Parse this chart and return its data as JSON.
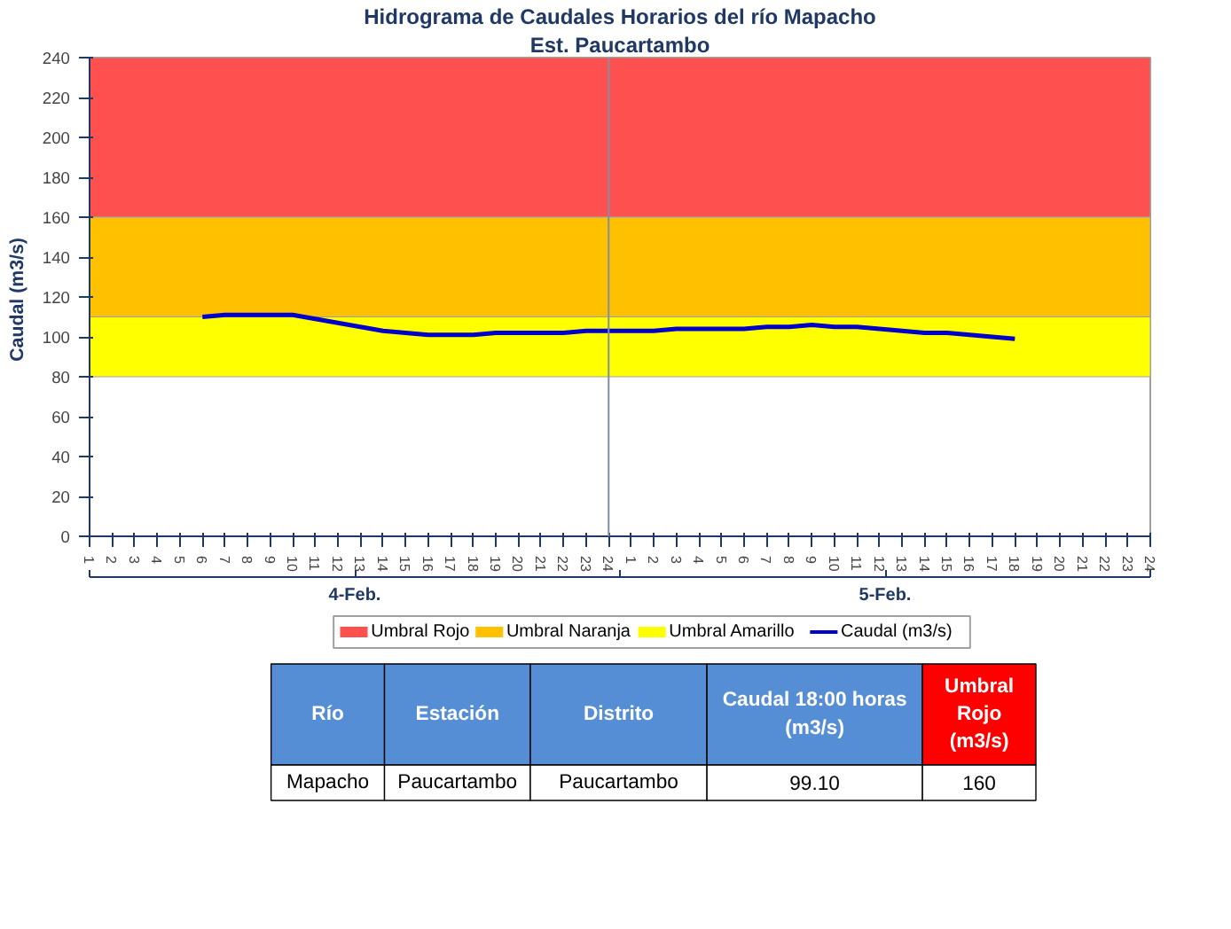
{
  "chart_data": {
    "type": "line",
    "title": "Hidrograma de Caudales Horarios del río Mapacho",
    "subtitle": "Est. Paucartambo",
    "ylabel": "Caudal  (m3/s)",
    "categories": [
      "1",
      "2",
      "3",
      "4",
      "5",
      "6",
      "7",
      "8",
      "9",
      "10",
      "11",
      "12",
      "13",
      "14",
      "15",
      "16",
      "17",
      "18",
      "19",
      "20",
      "21",
      "22",
      "23",
      "24",
      "1",
      "2",
      "3",
      "4",
      "5",
      "6",
      "7",
      "8",
      "9",
      "10",
      "11",
      "12",
      "13",
      "14",
      "15",
      "16",
      "17",
      "18",
      "19",
      "20",
      "21",
      "22",
      "23",
      "24"
    ],
    "ylim": [
      0,
      240
    ],
    "yticks": [
      0,
      20,
      40,
      60,
      80,
      100,
      120,
      140,
      160,
      180,
      200,
      220,
      240
    ],
    "bands": [
      {
        "axis": "y",
        "from": 160,
        "to": 240,
        "label": "Umbral Rojo",
        "color": "#ff5050"
      },
      {
        "axis": "y",
        "from": 110,
        "to": 160,
        "label": "Umbral Naranja",
        "color": "#ffc000"
      },
      {
        "axis": "y",
        "from": 80,
        "to": 110,
        "label": "Umbral Amarillo",
        "color": "#ffff00"
      }
    ],
    "ref_lines": [
      {
        "axis": "x",
        "value": "24",
        "color": "#7f8fa6"
      }
    ],
    "series": [
      {
        "name": "Caudal (m3/s)",
        "color": "#0000cc",
        "values": [
          null,
          null,
          null,
          null,
          null,
          110,
          111,
          111,
          111,
          111,
          109,
          107,
          105,
          103,
          102,
          101,
          101,
          101,
          102,
          102,
          102,
          102,
          103,
          103,
          103,
          103,
          104,
          104,
          104,
          104,
          105,
          105,
          106,
          105,
          105,
          104,
          103,
          102,
          102,
          101,
          100,
          99,
          null,
          null,
          null,
          null,
          null,
          null
        ]
      }
    ],
    "legend": "bottom",
    "annotations": [
      "4-Feb.",
      "5-Feb.",
      "Río",
      "Estación",
      "Distrito",
      "Caudal 18:00 horas\n(m3/s)",
      "Umbral\nRojo\n(m3/s)",
      "Mapacho",
      "Paucartambo",
      "Paucartambo",
      "99.10",
      "160"
    ]
  }
}
